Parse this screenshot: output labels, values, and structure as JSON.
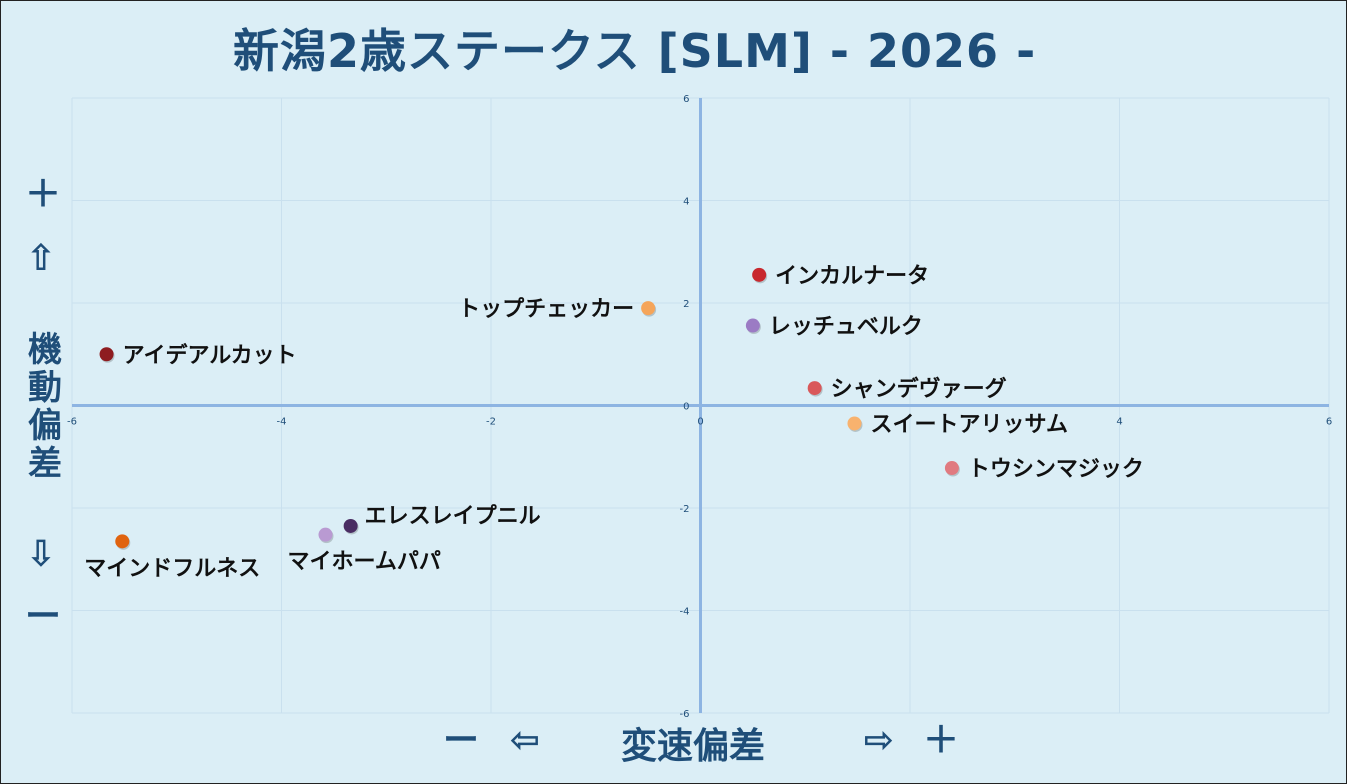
{
  "title": "新潟2歳ステークス [SLM]  - 2026 -",
  "axis_labels": {
    "y": "機動偏差",
    "x": "変速偏差",
    "plus": "＋",
    "minus": "ー",
    "arrow_up": "⇧",
    "arrow_down": "⇩",
    "arrow_left": "⇦",
    "arrow_right": "⇨"
  },
  "colors": {
    "background": "#dbeef6",
    "axis": "#8db4e2",
    "grid": "#c9e0ee",
    "title": "#1f4e79",
    "tick": "#1f4e79"
  },
  "chart_data": {
    "type": "scatter",
    "xlim": [
      -6,
      6
    ],
    "ylim": [
      -6,
      6
    ],
    "xticks": [
      -6,
      -4,
      -2,
      0,
      2,
      4,
      6
    ],
    "yticks": [
      -6,
      -4,
      -2,
      0,
      2,
      4,
      6
    ],
    "xtick_labels": [
      "-6",
      "-4",
      "-2",
      "0",
      "",
      "4",
      "6"
    ],
    "ytick_labels": [
      "-6",
      "-4",
      "-2",
      "0",
      "2",
      "4",
      "6"
    ],
    "grid": true,
    "points": [
      {
        "label": "インカルナータ",
        "x": 0.56,
        "y": 2.55,
        "color": "#c8282e",
        "label_pos": "right"
      },
      {
        "label": "トップチェッカー",
        "x": -0.5,
        "y": 1.9,
        "color": "#f5a55a",
        "label_pos": "left"
      },
      {
        "label": "レッチュベルク",
        "x": 0.5,
        "y": 1.56,
        "color": "#9b7bc4",
        "label_pos": "right"
      },
      {
        "label": "アイデアルカット",
        "x": -5.67,
        "y": 1.0,
        "color": "#8e1c20",
        "label_pos": "right"
      },
      {
        "label": "シャンデヴァーグ",
        "x": 1.09,
        "y": 0.34,
        "color": "#d9585a",
        "label_pos": "right"
      },
      {
        "label": "スイートアリッサム",
        "x": 1.47,
        "y": -0.35,
        "color": "#f8b26e",
        "label_pos": "right"
      },
      {
        "label": "トウシンマジック",
        "x": 2.4,
        "y": -1.22,
        "color": "#e07a80",
        "label_pos": "right"
      },
      {
        "label": "エレスレイプニル",
        "x": -3.34,
        "y": -2.35,
        "color": "#4a2d63",
        "label_pos": "above-right"
      },
      {
        "label": "マイホームパパ",
        "x": -3.58,
        "y": -2.52,
        "color": "#b99ad2",
        "label_pos": "below"
      },
      {
        "label": "マインドフルネス",
        "x": -5.52,
        "y": -2.65,
        "color": "#e0630f",
        "label_pos": "below"
      }
    ]
  }
}
